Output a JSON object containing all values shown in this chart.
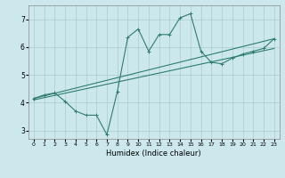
{
  "xlabel": "Humidex (Indice chaleur)",
  "ylabel": "",
  "bg_color": "#cce8ec",
  "line_color": "#2e7d6e",
  "grid_color": "#aacccc",
  "xlim": [
    -0.5,
    23.5
  ],
  "ylim": [
    2.7,
    7.5
  ],
  "x_ticks": [
    0,
    1,
    2,
    3,
    4,
    5,
    6,
    7,
    8,
    9,
    10,
    11,
    12,
    13,
    14,
    15,
    16,
    17,
    18,
    19,
    20,
    21,
    22,
    23
  ],
  "y_ticks": [
    3,
    4,
    5,
    6,
    7
  ],
  "curve1_x": [
    0,
    1,
    2,
    3,
    4,
    5,
    6,
    7,
    8,
    9,
    10,
    11,
    12,
    13,
    14,
    15,
    16,
    17,
    18,
    19,
    20,
    21,
    22,
    23
  ],
  "curve1_y": [
    4.15,
    4.28,
    4.35,
    4.05,
    3.7,
    3.55,
    3.55,
    2.85,
    4.4,
    6.35,
    6.65,
    5.85,
    6.45,
    6.45,
    7.05,
    7.2,
    5.85,
    5.45,
    5.4,
    5.6,
    5.75,
    5.85,
    5.95,
    6.3
  ],
  "line2_x": [
    0,
    23
  ],
  "line2_y": [
    4.15,
    6.3
  ],
  "line3_x": [
    0,
    23
  ],
  "line3_y": [
    4.1,
    5.95
  ]
}
